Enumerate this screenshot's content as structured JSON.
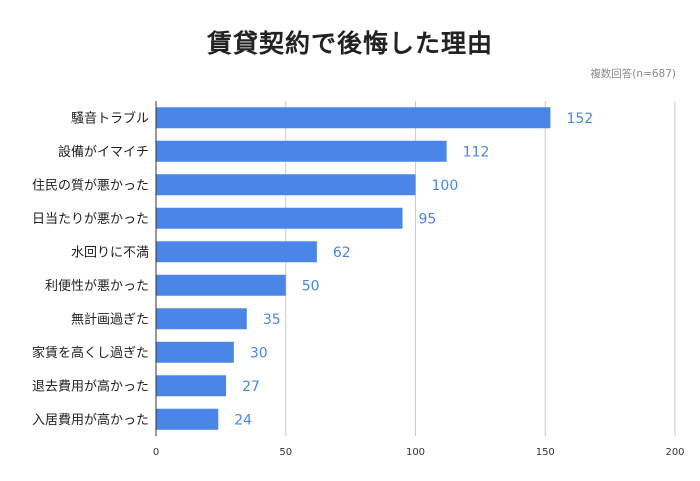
{
  "chart_data": {
    "type": "bar",
    "orientation": "horizontal",
    "title": "賃貸契約で後悔した理由",
    "subtitle": "複数回答(n=687)",
    "categories": [
      "騒音トラブル",
      "設備がイマイチ",
      "住民の質が悪かった",
      "日当たりが悪かった",
      "水回りに不満",
      "利便性が悪かった",
      "無計画過ぎた",
      "家賃を高くし過ぎた",
      "退去費用が高かった",
      "入居費用が高かった"
    ],
    "values": [
      152,
      112,
      100,
      95,
      62,
      50,
      35,
      30,
      27,
      24
    ],
    "xlim": [
      0,
      200
    ],
    "xticks": [
      0,
      50,
      100,
      150,
      200
    ],
    "xlabel": "",
    "ylabel": "",
    "grid": true,
    "legend": "none",
    "data_labels": true,
    "colors": {
      "bar": "#4a86e8",
      "value_label": "#4a86e8",
      "grid": "#cccccc",
      "axis": "#333333"
    }
  }
}
